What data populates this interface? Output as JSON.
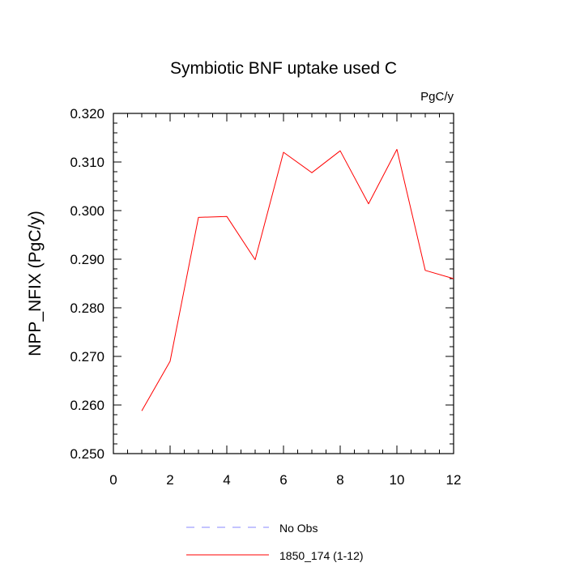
{
  "chart_data": {
    "type": "line",
    "title": "Symbiotic BNF uptake used C",
    "units": "PgC/y",
    "xlabel": "",
    "ylabel": "NPP_NFIX  (PgC/y)",
    "xlim": [
      0,
      12
    ],
    "ylim": [
      0.25,
      0.32
    ],
    "x_ticks": [
      "0",
      "2",
      "4",
      "6",
      "8",
      "10",
      "12"
    ],
    "y_ticks": [
      "0.250",
      "0.260",
      "0.270",
      "0.280",
      "0.290",
      "0.300",
      "0.310",
      "0.320"
    ],
    "grid": false,
    "legend_position": "bottom",
    "series": [
      {
        "name": "1850_174 (1-12)",
        "color": "#ff0000",
        "style": "solid",
        "x": [
          1,
          2,
          3,
          4,
          5,
          6,
          7,
          8,
          9,
          10,
          11,
          12
        ],
        "values": [
          0.2588,
          0.269,
          0.2986,
          0.2988,
          0.2899,
          0.312,
          0.3078,
          0.3123,
          0.3014,
          0.3126,
          0.2877,
          0.286
        ]
      }
    ],
    "legend": [
      {
        "label": "No Obs",
        "color": "#8a8aff",
        "style": "dashed"
      },
      {
        "label": "1850_174 (1-12)",
        "color": "#ff0000",
        "style": "solid"
      }
    ]
  }
}
